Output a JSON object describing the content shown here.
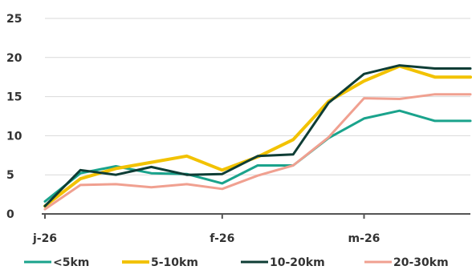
{
  "chart_data": {
    "type": "line",
    "title": "",
    "xlabel": "",
    "ylabel": "",
    "x_ticks": [
      {
        "label": "j-26",
        "index": 0
      },
      {
        "label": "f-26",
        "index": 5
      },
      {
        "label": "m-26",
        "index": 9
      }
    ],
    "x_count": 13,
    "ylim": [
      0,
      25
    ],
    "y_ticks": [
      0,
      5,
      10,
      15,
      20,
      25
    ],
    "grid": true,
    "legend_position": "bottom",
    "series": [
      {
        "name": "<5km",
        "color": "#1aa38c",
        "values": [
          1.6,
          5.2,
          6.1,
          5.2,
          5.1,
          3.9,
          6.2,
          6.2,
          9.7,
          12.2,
          13.2,
          11.9,
          11.9
        ]
      },
      {
        "name": "5-10km",
        "color": "#f2c200",
        "values": [
          1.0,
          4.5,
          5.8,
          6.6,
          7.4,
          5.6,
          7.3,
          9.5,
          14.4,
          17.0,
          18.9,
          17.5,
          17.5
        ]
      },
      {
        "name": "10-20km",
        "color": "#0e3d35",
        "values": [
          1.0,
          5.6,
          5.0,
          6.0,
          5.0,
          5.1,
          7.4,
          7.6,
          14.2,
          17.9,
          19.0,
          18.6,
          18.6
        ]
      },
      {
        "name": "20-30km",
        "color": "#f0a090",
        "values": [
          0.6,
          3.7,
          3.8,
          3.4,
          3.8,
          3.2,
          4.9,
          6.2,
          9.8,
          14.8,
          14.7,
          15.3,
          15.3
        ]
      }
    ]
  }
}
